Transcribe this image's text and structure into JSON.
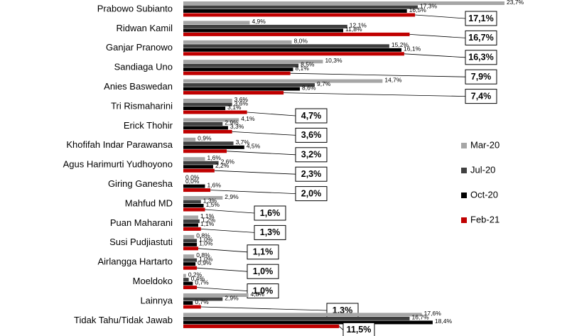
{
  "chart_data": {
    "type": "bar",
    "orientation": "horizontal",
    "legend": "right",
    "categories": [
      "Prabowo Subianto",
      "Ridwan Kamil",
      "Ganjar Pranowo",
      "Sandiaga Uno",
      "Anies Baswedan",
      "Tri Rismaharini",
      "Erick Thohir",
      "Khofifah Indar Parawansa",
      "Agus Harimurti Yudhoyono",
      "Giring Ganesha",
      "Mahfud MD",
      "Puan Maharani",
      "Susi Pudjiastuti",
      "Airlangga Hartarto",
      "Moeldoko",
      "Lainnya",
      "Tidak Tahu/Tidak Jawab"
    ],
    "series": [
      {
        "name": "Mar-20",
        "color": "#a6a6a6",
        "values": [
          23.7,
          4.9,
          8.0,
          10.3,
          14.7,
          3.6,
          4.1,
          0.9,
          1.6,
          0.0,
          2.9,
          1.1,
          0.8,
          0.8,
          0.2,
          4.8,
          17.6
        ],
        "value_labels": [
          "23,7%",
          "4,9%",
          "8,0%",
          "10,3%",
          "14,7%",
          "3,6%",
          "4,1%",
          "0,9%",
          "1,6%",
          "0,0%",
          "2,9%",
          "1,1%",
          "0,8%",
          "0,8%",
          "0,2%",
          "4,8%",
          "17,6%"
        ]
      },
      {
        "name": "Jul-20",
        "color": "#404040",
        "values": [
          17.3,
          12.1,
          15.2,
          8.5,
          9.7,
          3.6,
          2.9,
          3.7,
          2.6,
          0.0,
          1.3,
          1.2,
          1.0,
          1.0,
          0.4,
          2.9,
          16.7
        ],
        "value_labels": [
          "17,3%",
          "12,1%",
          "15,2%",
          "8,5%",
          "9,7%",
          "3,6%",
          "2,9%",
          "3,7%",
          "2,6%",
          "0,0%",
          "1,3%",
          "1,2%",
          "1,0%",
          "1,0%",
          "0,4%",
          "2,9%",
          "16,7%"
        ]
      },
      {
        "name": "Oct-20",
        "color": "#000000",
        "values": [
          16.5,
          11.8,
          16.1,
          8.1,
          8.6,
          3.1,
          3.3,
          4.5,
          2.2,
          1.6,
          1.5,
          1.1,
          1.0,
          0.9,
          0.7,
          0.7,
          18.4
        ],
        "value_labels": [
          "16,5%",
          "11,8%",
          "16,1%",
          "8,1%",
          "8,6%",
          "3,1%",
          "3,3%",
          "4,5%",
          "2,2%",
          "1,6%",
          "1,5%",
          "1,1%",
          "1,0%",
          "0,9%",
          "0,7%",
          "0,7%",
          "18,4%"
        ]
      },
      {
        "name": "Feb-21",
        "color": "#c00000",
        "values": [
          17.1,
          16.7,
          16.3,
          7.9,
          7.4,
          4.7,
          3.6,
          3.2,
          2.3,
          2.0,
          1.6,
          1.3,
          1.1,
          1.0,
          1.0,
          1.3,
          11.5
        ],
        "value_labels": [
          "17,1%",
          "16,7%",
          "16,3%",
          "7,9%",
          "7,4%",
          "4,7%",
          "3,6%",
          "3,2%",
          "2,3%",
          "2,0%",
          "1,6%",
          "1,3%",
          "1,1%",
          "1,0%",
          "1,0%",
          "1,3%",
          "11,5%"
        ]
      }
    ]
  }
}
